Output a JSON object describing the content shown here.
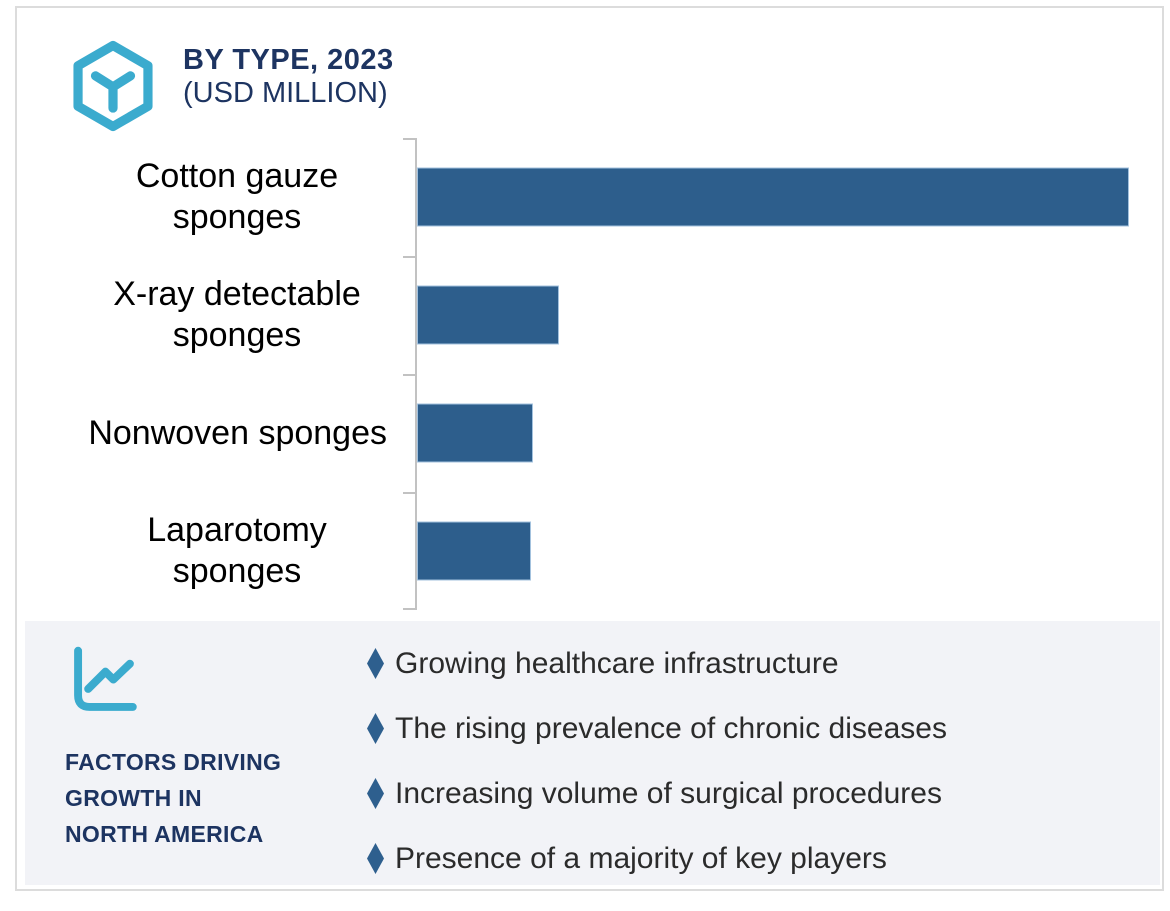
{
  "header": {
    "logo_icon": "hexagon-y-icon",
    "title_line1": "BY TYPE, 2023",
    "title_line2": "(USD MILLION)"
  },
  "chart_data": {
    "type": "bar",
    "orientation": "horizontal",
    "title": "BY TYPE, 2023 (USD MILLION)",
    "xlabel": "",
    "ylabel": "",
    "categories": [
      "Cotton gauze sponges",
      "X-ray detectable sponges",
      "Nonwoven sponges",
      "Laparotomy sponges"
    ],
    "values_pct_of_max": [
      100,
      20,
      16.3,
      16
    ],
    "value_axis_labels_visible": false,
    "data_labels_visible": false,
    "gridlines": false,
    "legend": "none",
    "bar_color": "#2d5e8c",
    "bar_border_color": "#a3c2de",
    "axis_color": "#c2c2c2"
  },
  "factors_panel": {
    "icon": "line-chart-icon",
    "heading_lines": [
      "FACTORS DRIVING",
      "GROWTH IN",
      "NORTH AMERICA"
    ],
    "bullet_marker": "diamond",
    "bullets": [
      "Growing healthcare infrastructure",
      "The rising prevalence of chronic diseases",
      "Increasing volume of surgical procedures",
      "Presence of a majority of key players"
    ],
    "background": "#f2f3f7",
    "bullet_color": "#2e5f8e"
  },
  "colors": {
    "accent_cyan": "#3babce",
    "navy": "#1d3461",
    "bar_blue": "#2d5e8c",
    "axis_gray": "#c2c2c2",
    "panel_bg": "#f2f3f7",
    "text_dark": "#2b2b2b"
  }
}
